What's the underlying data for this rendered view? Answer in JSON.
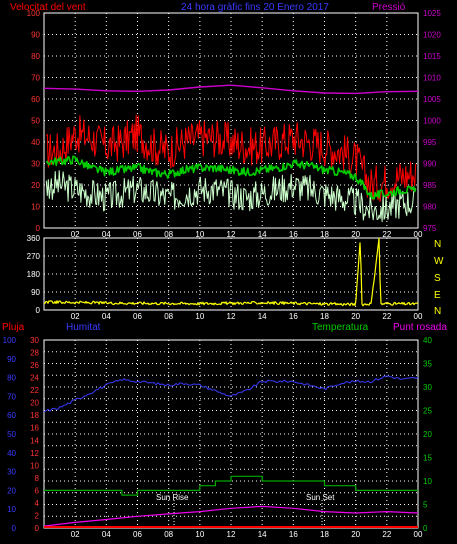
{
  "colors": {
    "wind_avg": "#00cc00",
    "gust": "#ff0000",
    "wind_min": "#ccffcc",
    "pressure": "#cc00cc",
    "direction": "#ffff00",
    "rain": "#ff0000",
    "humidity": "#3a3aff",
    "temperature": "#00aa00",
    "dewpoint": "#ee00ee",
    "grid": "#ffffff",
    "dir_label": "#ffff00"
  },
  "header": {
    "left": "Velocitat del vent",
    "center": "24 hora gràfic fins  20 Enero 2017",
    "right": "Pressió"
  },
  "bottom_header": {
    "rain": "Pluja",
    "humidity": "Humitat",
    "temperature": "Temperatura",
    "dewpoint": "Punt rosada"
  },
  "sun_rise_label": "Sun Rise",
  "sun_set_label": "Sun Set",
  "direction_letters": [
    "N",
    "W",
    "S",
    "E",
    "N"
  ],
  "chart_data": [
    {
      "type": "line",
      "panel": "wind-pressure",
      "x_ticks": [
        "02",
        "04",
        "06",
        "08",
        "10",
        "12",
        "14",
        "16",
        "18",
        "20",
        "22",
        "00"
      ],
      "y_left_ticks": [
        "0",
        "10",
        "20",
        "30",
        "40",
        "50",
        "60",
        "70",
        "80",
        "90",
        "100"
      ],
      "y_right_ticks": [
        "975",
        "980",
        "985",
        "990",
        "995",
        "1000",
        "1005",
        "1010",
        "1015",
        "1020",
        "1025"
      ],
      "y_left_lim": [
        0,
        100
      ],
      "y_right_lim": [
        975,
        1025
      ],
      "grid": true,
      "series": [
        {
          "key": "gust",
          "x": [
            1,
            2,
            3,
            4,
            5,
            6,
            7,
            8,
            9,
            10,
            11,
            12,
            13,
            14,
            15,
            16,
            17,
            18,
            19,
            20,
            21,
            22,
            23,
            24
          ],
          "values": [
            36,
            44,
            42,
            38,
            40,
            44,
            38,
            36,
            40,
            42,
            42,
            40,
            38,
            38,
            40,
            42,
            40,
            38,
            36,
            32,
            20,
            22,
            24,
            26
          ]
        },
        {
          "key": "wind_avg",
          "x": [
            1,
            2,
            3,
            4,
            5,
            6,
            7,
            8,
            9,
            10,
            11,
            12,
            13,
            14,
            15,
            16,
            17,
            18,
            19,
            20,
            21,
            22,
            23,
            24
          ],
          "values": [
            31,
            32,
            28,
            26,
            27,
            28,
            26,
            25,
            27,
            28,
            28,
            27,
            26,
            27,
            28,
            30,
            29,
            27,
            26,
            24,
            15,
            16,
            18,
            17
          ]
        },
        {
          "key": "wind_min",
          "x": [
            1,
            2,
            3,
            4,
            5,
            6,
            7,
            8,
            9,
            10,
            11,
            12,
            13,
            14,
            15,
            16,
            17,
            18,
            19,
            20,
            21,
            22,
            23,
            24
          ],
          "values": [
            20,
            18,
            16,
            14,
            16,
            18,
            16,
            14,
            16,
            18,
            18,
            16,
            14,
            16,
            18,
            20,
            18,
            16,
            14,
            12,
            8,
            9,
            12,
            12
          ]
        },
        {
          "key": "pressure",
          "x": [
            0,
            2,
            4,
            6,
            8,
            10,
            12,
            14,
            16,
            18,
            20,
            22,
            24
          ],
          "values": [
            1007.5,
            1007.3,
            1006.9,
            1006.8,
            1007.1,
            1007.8,
            1008.2,
            1007.6,
            1006.9,
            1006.4,
            1006.3,
            1006.7,
            1006.8
          ]
        }
      ]
    },
    {
      "type": "line",
      "panel": "wind-direction",
      "x_ticks": [
        "02",
        "04",
        "06",
        "08",
        "10",
        "12",
        "14",
        "16",
        "18",
        "20",
        "22",
        "00"
      ],
      "y_ticks": [
        "0",
        "90",
        "180",
        "270",
        "360"
      ],
      "ylim": [
        0,
        360
      ],
      "grid": true,
      "series": [
        {
          "key": "direction",
          "x": [
            0,
            2,
            4,
            6,
            8,
            10,
            12,
            14,
            16,
            18,
            20,
            20.3,
            20.4,
            21,
            21.5,
            21.6,
            22,
            24
          ],
          "values": [
            40,
            38,
            35,
            34,
            33,
            32,
            34,
            36,
            34,
            30,
            28,
            360,
            28,
            32,
            360,
            30,
            32,
            30
          ]
        }
      ]
    },
    {
      "type": "line",
      "panel": "rain-humidity-temperature",
      "x_ticks": [
        "02",
        "04",
        "06",
        "08",
        "10",
        "12",
        "14",
        "16",
        "18",
        "20",
        "22",
        "00"
      ],
      "y_rain_ticks": [
        "0",
        "10",
        "20",
        "30",
        "40",
        "50",
        "60",
        "70",
        "80",
        "90",
        "100"
      ],
      "y_left2_ticks": [
        "0",
        "2",
        "4",
        "6",
        "8",
        "10",
        "12",
        "14",
        "16",
        "18",
        "20",
        "22",
        "24",
        "26",
        "28",
        "30"
      ],
      "y_right_ticks": [
        "0",
        "5",
        "10",
        "15",
        "20",
        "25",
        "30",
        "35",
        "40"
      ],
      "y_rain_lim": [
        0,
        100
      ],
      "y_right_lim": [
        0,
        40
      ],
      "grid": true,
      "series": [
        {
          "key": "humidity",
          "x": [
            0,
            1,
            2,
            3,
            4,
            5,
            6,
            7,
            8,
            9,
            10,
            11,
            12,
            13,
            14,
            15,
            16,
            17,
            18,
            19,
            20,
            21,
            22,
            23,
            24
          ],
          "values": [
            62,
            64,
            68,
            72,
            76,
            79,
            78,
            77,
            76,
            77,
            76,
            73,
            70,
            73,
            78,
            78,
            78,
            76,
            74,
            77,
            78,
            78,
            81,
            79,
            80
          ]
        },
        {
          "key": "temperature",
          "x": [
            0,
            2,
            4,
            5,
            6,
            8,
            10,
            11,
            12,
            14,
            16,
            18,
            20,
            22,
            24
          ],
          "values": [
            8,
            8,
            8,
            7,
            8,
            8,
            9,
            10,
            11,
            10,
            10,
            9,
            8,
            8,
            8
          ]
        },
        {
          "key": "dewpoint",
          "x": [
            0,
            2,
            4,
            6,
            8,
            10,
            12,
            14,
            16,
            18,
            20,
            22,
            24
          ],
          "values": [
            0.4,
            1.2,
            1.8,
            2.5,
            3.0,
            3.5,
            4.2,
            4.6,
            4.2,
            3.5,
            3.2,
            3.5,
            3.2
          ]
        },
        {
          "key": "rain",
          "x": [
            0,
            24
          ],
          "values": [
            0,
            0
          ]
        }
      ]
    }
  ]
}
